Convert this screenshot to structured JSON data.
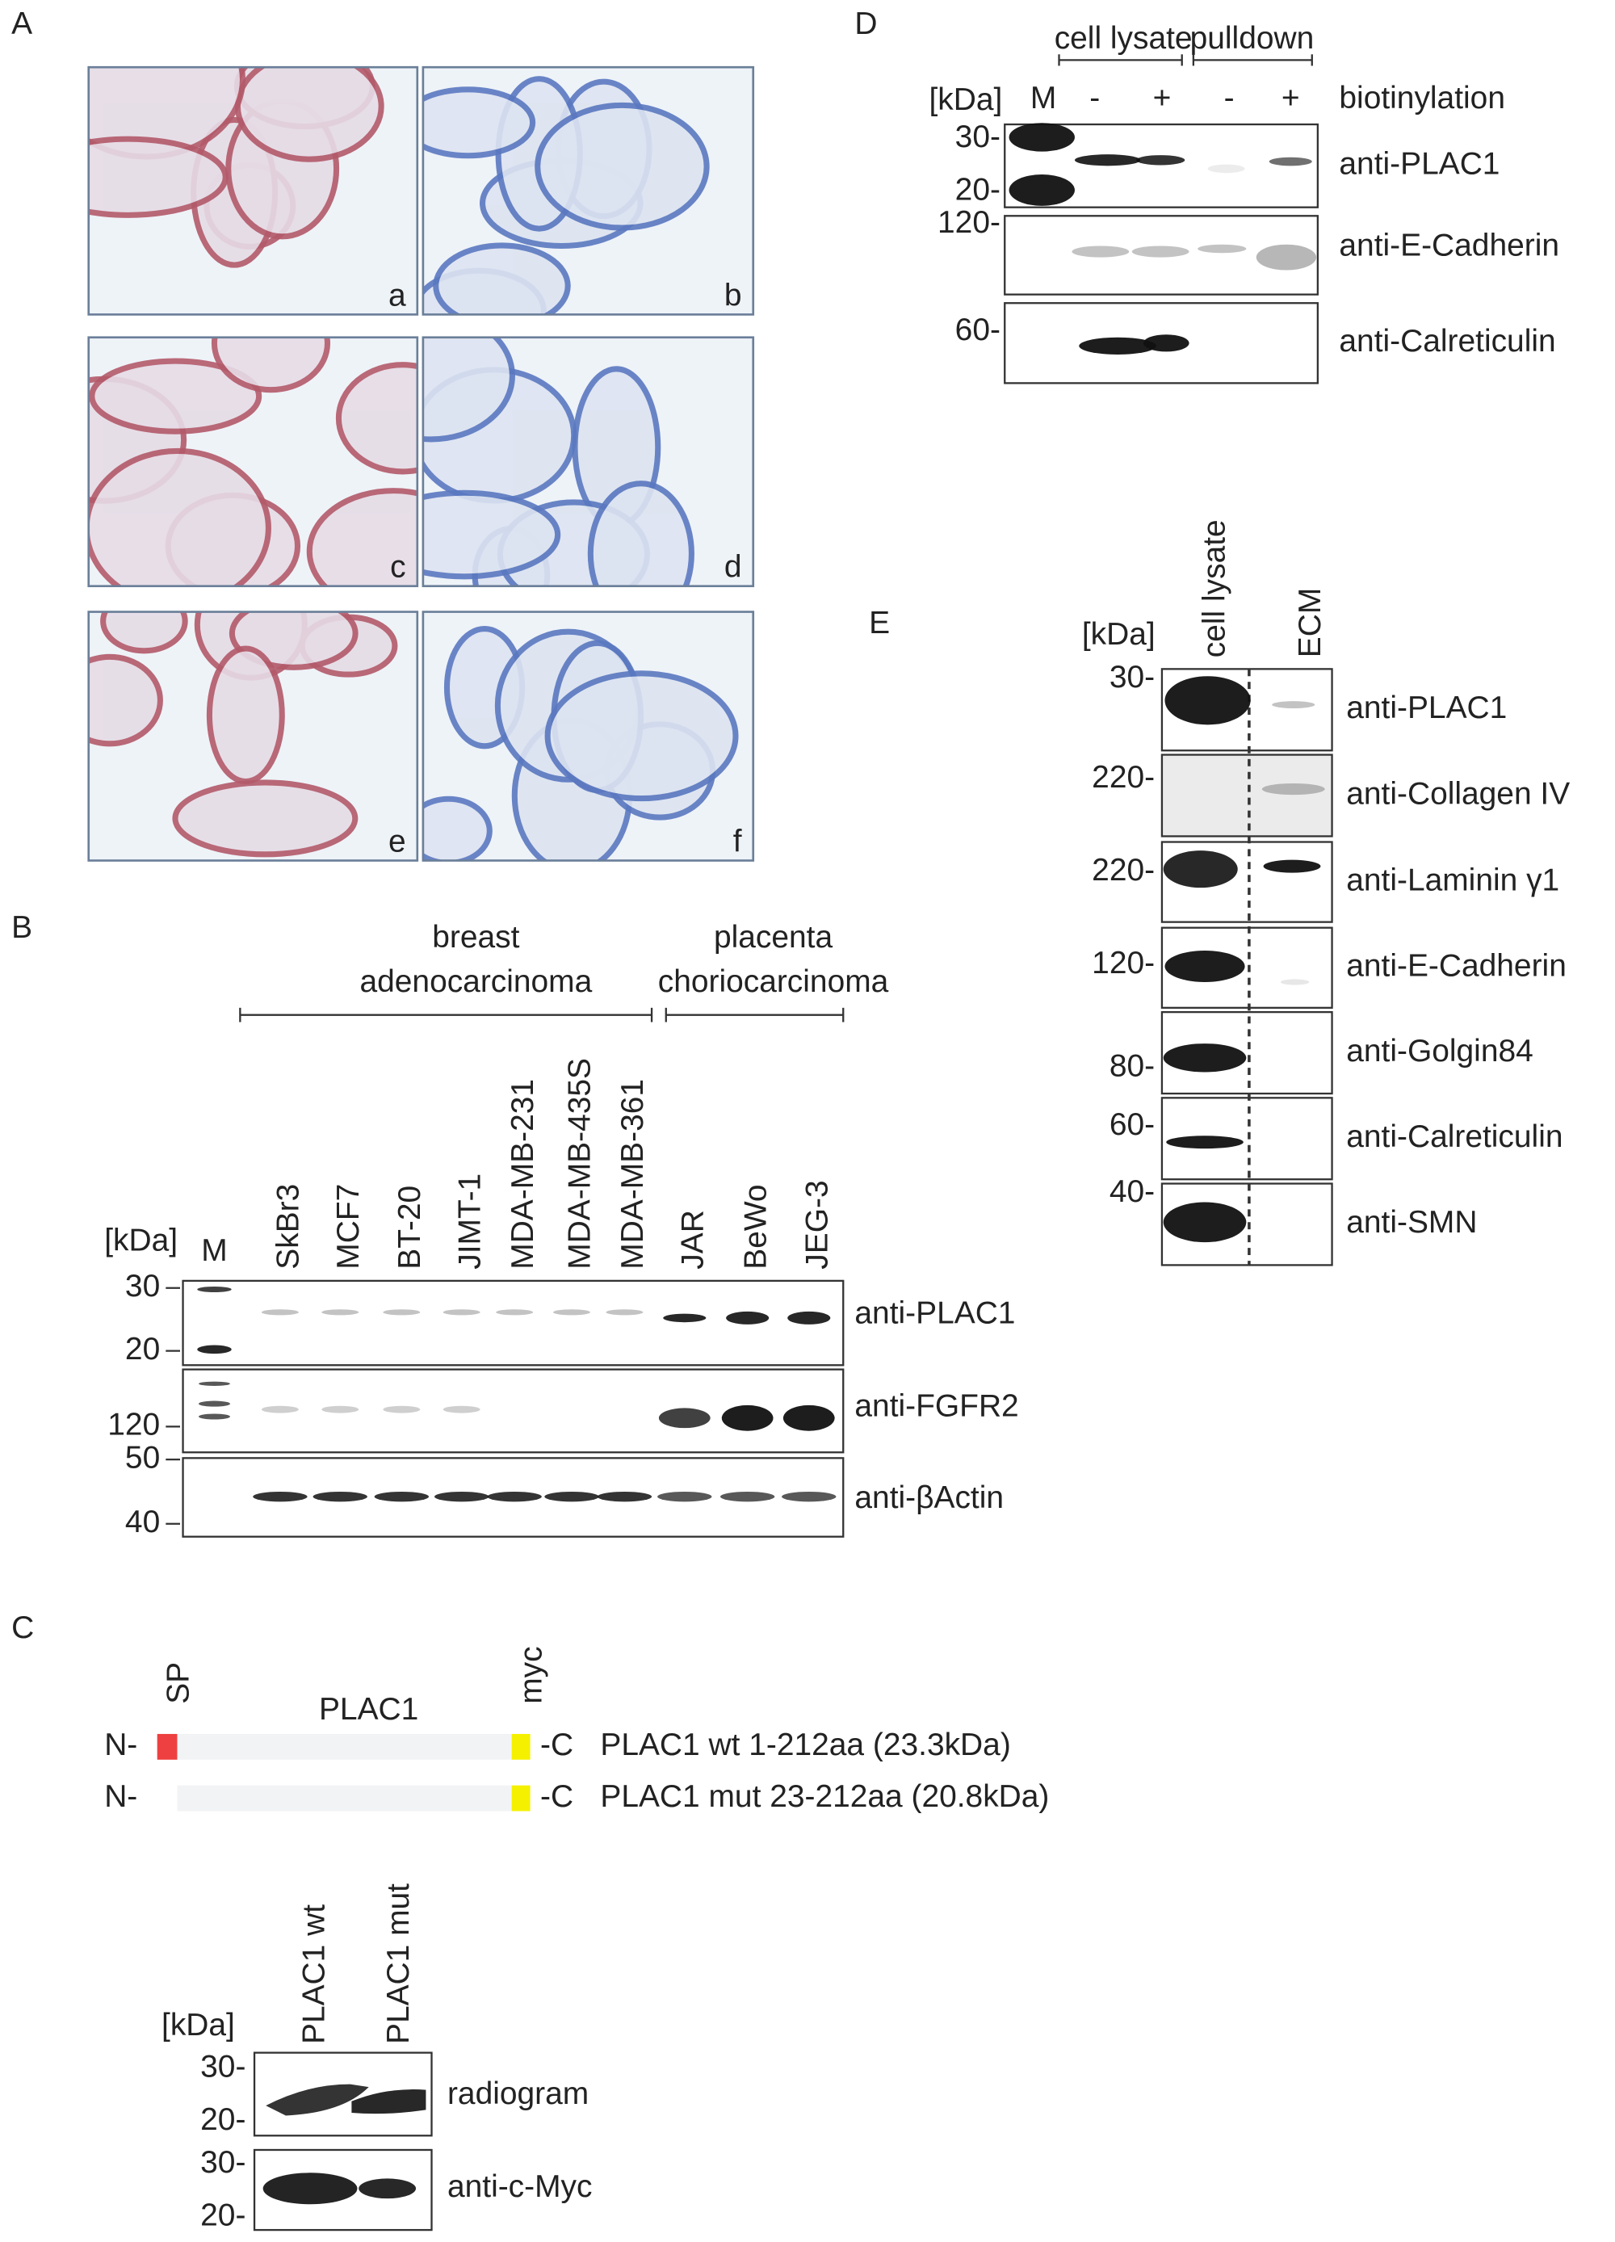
{
  "panel_a": {
    "label": "A",
    "images": [
      "a",
      "b",
      "c",
      "d",
      "e",
      "f"
    ]
  },
  "panel_b": {
    "label": "B",
    "groups": [
      [
        "breast",
        "adenocarcinoma"
      ],
      [
        "placenta",
        "choriocarcinoma"
      ]
    ],
    "unit": "[kDa]",
    "lanes": [
      "M",
      "SkBr3",
      "MCF7",
      "BT-20",
      "JIMT-1",
      "MDA-MB-231",
      "MDA-MB-435S",
      "MDA-MB-361",
      "JAR",
      "BeWo",
      "JEG-3"
    ],
    "blots": [
      {
        "antibody": "anti-PLAC1",
        "markers": [
          "30",
          "20"
        ]
      },
      {
        "antibody": "anti-FGFR2",
        "markers": [
          "120"
        ]
      },
      {
        "antibody": "anti-βActin",
        "markers": [
          "50",
          "40"
        ]
      }
    ]
  },
  "panel_c": {
    "label": "C",
    "construct": {
      "sp": "SP",
      "name": "PLAC1",
      "tag": "myc",
      "rows": [
        {
          "n": "N-",
          "c": "-C",
          "label": "PLAC1 wt 1-212aa (23.3kDa)"
        },
        {
          "n": "N-",
          "c": "-C",
          "label": "PLAC1 mut 23-212aa (20.8kDa)"
        }
      ]
    },
    "unit": "[kDa]",
    "lanes": [
      "PLAC1 wt",
      "PLAC1 mut"
    ],
    "blots": [
      {
        "antibody": "radiogram",
        "markers": [
          "30-",
          "20-"
        ]
      },
      {
        "antibody": "anti-c-Myc",
        "markers": [
          "30-",
          "20-"
        ]
      }
    ]
  },
  "panel_d": {
    "label": "D",
    "groups": [
      "cell lysate",
      "pulldown"
    ],
    "unit": "[kDa]",
    "lanes": [
      "M",
      "-",
      "+",
      "-",
      "+"
    ],
    "condition": "biotinylation",
    "blots": [
      {
        "antibody": "anti-PLAC1",
        "markers": [
          "30-",
          "20-"
        ]
      },
      {
        "antibody": "anti-E-Cadherin",
        "markers": [
          "120-"
        ]
      },
      {
        "antibody": "anti-Calreticulin",
        "markers": [
          "60-"
        ]
      }
    ]
  },
  "panel_e": {
    "label": "E",
    "unit": "[kDa]",
    "lanes": [
      "cell lysate",
      "ECM"
    ],
    "blots": [
      {
        "antibody": "anti-PLAC1",
        "markers": [
          "30-"
        ]
      },
      {
        "antibody": "anti-Collagen IV",
        "markers": [
          "220-"
        ]
      },
      {
        "antibody": "anti-Laminin γ1",
        "markers": [
          "220-"
        ]
      },
      {
        "antibody": "anti-E-Cadherin",
        "markers": [
          "120-"
        ]
      },
      {
        "antibody": "anti-Golgin84",
        "markers": [
          "80-"
        ]
      },
      {
        "antibody": "anti-Calreticulin",
        "markers": [
          "60-"
        ]
      },
      {
        "antibody": "anti-SMN",
        "markers": [
          "40-"
        ]
      }
    ]
  }
}
